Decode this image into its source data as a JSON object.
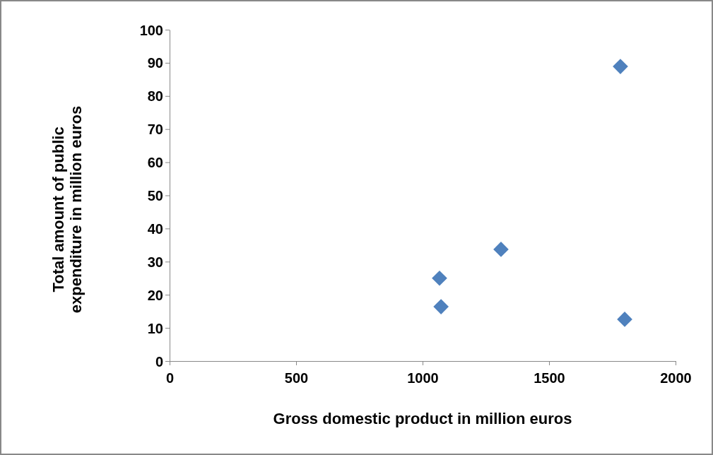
{
  "chart_data": {
    "type": "scatter",
    "xlabel": "Gross domestic product in million euros",
    "ylabel": "Total amount of public expenditure in million euros",
    "x": [
      1067,
      1073,
      1310,
      1782,
      1799
    ],
    "series": [
      {
        "color": "#4f81bd",
        "values": [
          25,
          16.4,
          33.7,
          88.9,
          12.6
        ]
      }
    ],
    "xlim": [
      0,
      2000
    ],
    "xticks": [
      0,
      500,
      1000,
      1500,
      2000
    ],
    "ylim": [
      0,
      100
    ],
    "yticks": [
      0,
      10,
      20,
      30,
      40,
      50,
      60,
      70,
      80,
      90,
      100
    ],
    "marker": "diamond"
  }
}
